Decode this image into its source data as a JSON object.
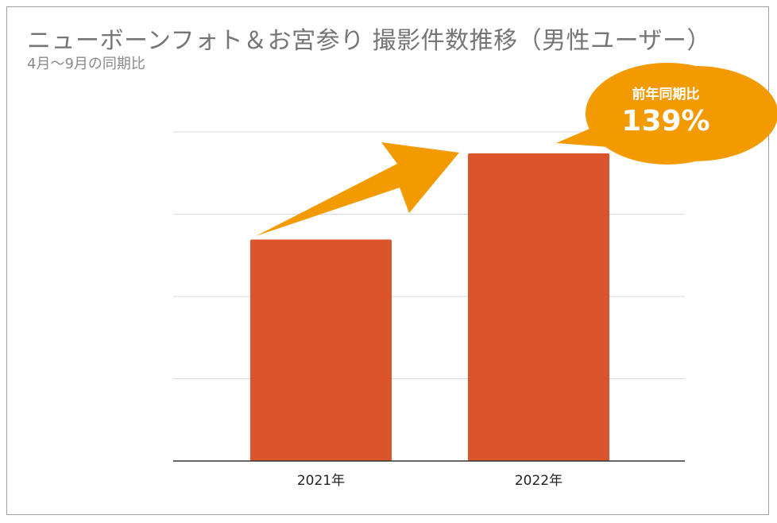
{
  "chart_data": {
    "type": "bar",
    "title": "ニューボーンフォト＆お宮参り 撮影件数推移（男性ユーザー）",
    "subtitle": "4月〜9月の同期比",
    "categories": [
      "2021年",
      "2022年"
    ],
    "values": [
      72,
      100
    ],
    "xlabel": "",
    "ylabel": "",
    "ylim": [
      0,
      107
    ],
    "grid": true,
    "legend": "none",
    "annotation": {
      "label": "前年同期比",
      "value": "139%"
    }
  },
  "colors": {
    "bar": "#db542b",
    "accent": "#f39a00",
    "grid": "#d9d9d9",
    "axis": "#333333"
  }
}
